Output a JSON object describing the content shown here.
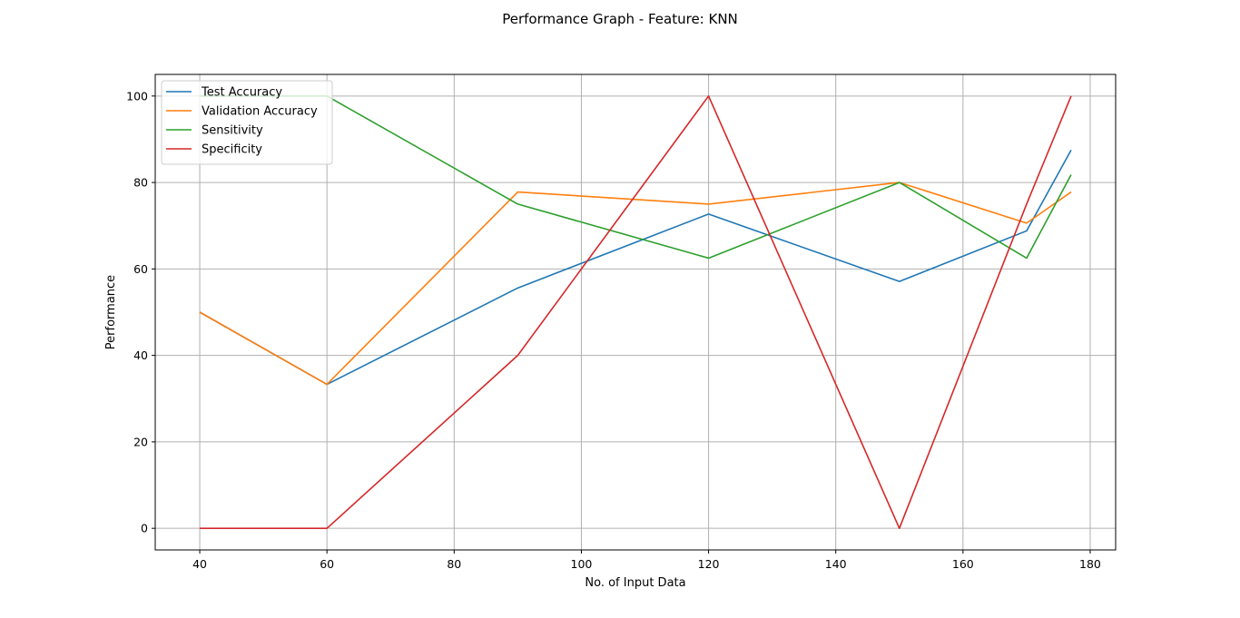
{
  "chart_data": {
    "type": "line",
    "title": "Performance Graph - Feature: KNN",
    "xlabel": "No. of Input Data",
    "ylabel": "Performance",
    "xlim": [
      33,
      184
    ],
    "ylim": [
      -5,
      105
    ],
    "xticks": [
      40,
      60,
      80,
      100,
      120,
      140,
      160,
      180
    ],
    "yticks": [
      0,
      20,
      40,
      60,
      80,
      100
    ],
    "grid": true,
    "legend_position": "top-left",
    "x": [
      40,
      60,
      90,
      120,
      150,
      170,
      177
    ],
    "series": [
      {
        "name": "Test Accuracy",
        "color": "#1f77b4",
        "values": [
          50,
          33.3,
          55.6,
          72.7,
          57.1,
          68.8,
          87.5
        ]
      },
      {
        "name": "Validation Accuracy",
        "color": "#ff7f0e",
        "values": [
          50,
          33.3,
          77.8,
          75,
          80,
          70.6,
          77.8
        ]
      },
      {
        "name": "Sensitivity",
        "color": "#2ca02c",
        "values": [
          100,
          100,
          75,
          62.5,
          80,
          62.5,
          81.8
        ]
      },
      {
        "name": "Specificity",
        "color": "#d62728",
        "values": [
          0,
          0,
          40,
          100,
          0,
          75,
          100
        ]
      }
    ]
  }
}
